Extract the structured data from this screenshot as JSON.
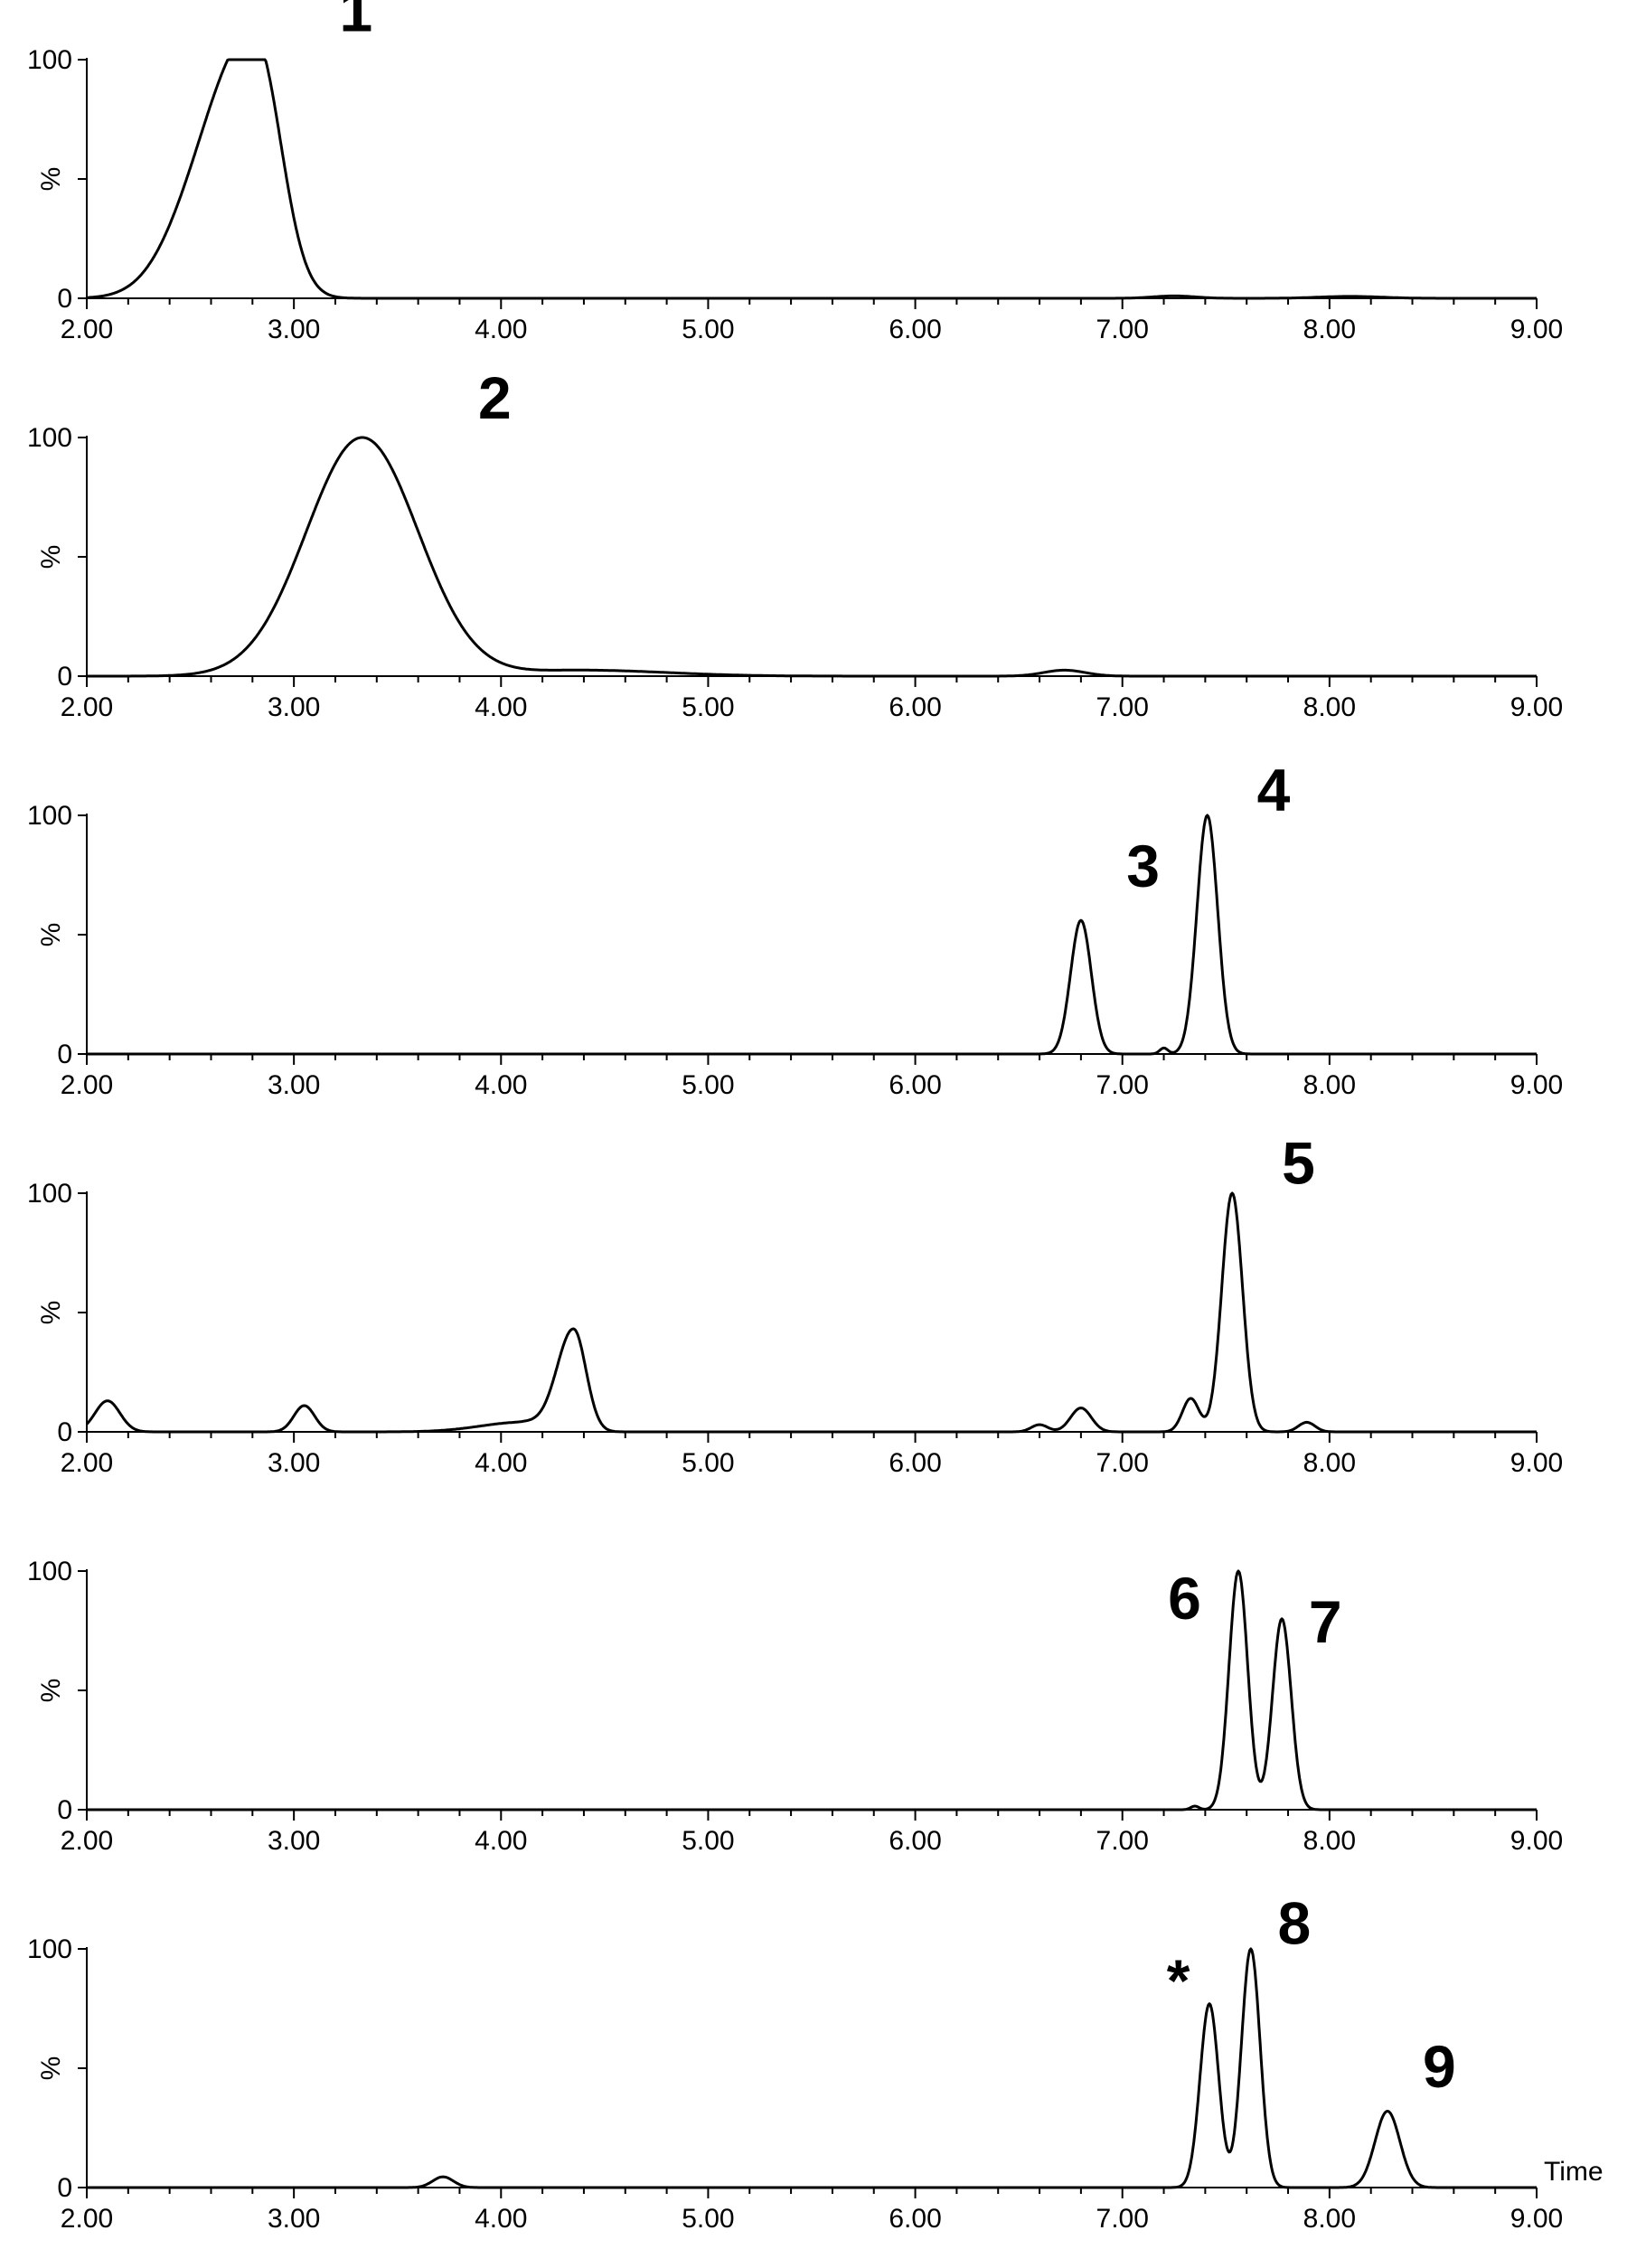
{
  "chart_data": [
    {
      "type": "line",
      "ylabel": "%",
      "xlim": [
        2.0,
        9.0
      ],
      "ylim": [
        0,
        100
      ],
      "x_ticks": [
        "2.00",
        "3.00",
        "4.00",
        "5.00",
        "6.00",
        "7.00",
        "8.00",
        "9.00"
      ],
      "y_ticks": [
        "0",
        "100"
      ],
      "peaks": [
        {
          "center": 2.82,
          "height": 100,
          "sigma_left": 0.2,
          "sigma_right": 0.12
        },
        {
          "center": 2.55,
          "height": 28,
          "sigma_left": 0.18,
          "sigma_right": 0.18
        },
        {
          "center": 7.25,
          "height": 1.0,
          "sigma_left": 0.1,
          "sigma_right": 0.1
        },
        {
          "center": 8.1,
          "height": 0.8,
          "sigma_left": 0.15,
          "sigma_right": 0.15
        }
      ],
      "annotations": [
        {
          "label": "1",
          "x": 3.3,
          "y": 112
        }
      ]
    },
    {
      "type": "line",
      "ylabel": "%",
      "xlim": [
        2.0,
        9.0
      ],
      "ylim": [
        0,
        100
      ],
      "x_ticks": [
        "2.00",
        "3.00",
        "4.00",
        "5.00",
        "6.00",
        "7.00",
        "8.00",
        "9.00"
      ],
      "y_ticks": [
        "0",
        "100"
      ],
      "peaks": [
        {
          "center": 3.33,
          "height": 100,
          "sigma_left": 0.27,
          "sigma_right": 0.27
        },
        {
          "center": 4.4,
          "height": 2.5,
          "sigma_left": 0.3,
          "sigma_right": 0.4
        },
        {
          "center": 6.72,
          "height": 2.5,
          "sigma_left": 0.1,
          "sigma_right": 0.1
        }
      ],
      "annotations": [
        {
          "label": "2",
          "x": 3.97,
          "y": 108
        }
      ]
    },
    {
      "type": "line",
      "ylabel": "%",
      "xlim": [
        2.0,
        9.0
      ],
      "ylim": [
        0,
        100
      ],
      "x_ticks": [
        "2.00",
        "3.00",
        "4.00",
        "5.00",
        "6.00",
        "7.00",
        "8.00",
        "9.00"
      ],
      "y_ticks": [
        "0",
        "100"
      ],
      "peaks": [
        {
          "center": 6.8,
          "height": 56,
          "sigma_left": 0.05,
          "sigma_right": 0.05
        },
        {
          "center": 7.2,
          "height": 2.5,
          "sigma_left": 0.02,
          "sigma_right": 0.02
        },
        {
          "center": 7.41,
          "height": 100,
          "sigma_left": 0.05,
          "sigma_right": 0.05
        }
      ],
      "annotations": [
        {
          "label": "3",
          "x": 7.1,
          "y": 70
        },
        {
          "label": "4",
          "x": 7.73,
          "y": 102
        }
      ]
    },
    {
      "type": "line",
      "ylabel": "%",
      "xlim": [
        2.0,
        9.0
      ],
      "ylim": [
        0,
        100
      ],
      "x_ticks": [
        "2.00",
        "3.00",
        "4.00",
        "5.00",
        "6.00",
        "7.00",
        "8.00",
        "9.00"
      ],
      "y_ticks": [
        "0",
        "100"
      ],
      "peaks": [
        {
          "center": 2.1,
          "height": 13,
          "sigma_left": 0.06,
          "sigma_right": 0.06
        },
        {
          "center": 3.05,
          "height": 11,
          "sigma_left": 0.05,
          "sigma_right": 0.05
        },
        {
          "center": 4.35,
          "height": 43,
          "sigma_left": 0.08,
          "sigma_right": 0.06
        },
        {
          "center": 4.1,
          "height": 4,
          "sigma_left": 0.2,
          "sigma_right": 0.1
        },
        {
          "center": 6.6,
          "height": 3,
          "sigma_left": 0.04,
          "sigma_right": 0.04
        },
        {
          "center": 6.8,
          "height": 10,
          "sigma_left": 0.05,
          "sigma_right": 0.05
        },
        {
          "center": 7.33,
          "height": 14,
          "sigma_left": 0.04,
          "sigma_right": 0.04
        },
        {
          "center": 7.53,
          "height": 100,
          "sigma_left": 0.05,
          "sigma_right": 0.05
        },
        {
          "center": 7.89,
          "height": 4,
          "sigma_left": 0.04,
          "sigma_right": 0.04
        }
      ],
      "annotations": [
        {
          "label": "5",
          "x": 7.85,
          "y": 104
        }
      ]
    },
    {
      "type": "line",
      "ylabel": "%",
      "xlim": [
        2.0,
        9.0
      ],
      "ylim": [
        0,
        100
      ],
      "x_ticks": [
        "2.00",
        "3.00",
        "4.00",
        "5.00",
        "6.00",
        "7.00",
        "8.00",
        "9.00"
      ],
      "y_ticks": [
        "0",
        "100"
      ],
      "peaks": [
        {
          "center": 7.35,
          "height": 1.5,
          "sigma_left": 0.02,
          "sigma_right": 0.02
        },
        {
          "center": 7.56,
          "height": 100,
          "sigma_left": 0.045,
          "sigma_right": 0.045
        },
        {
          "center": 7.77,
          "height": 80,
          "sigma_left": 0.045,
          "sigma_right": 0.045
        }
      ],
      "annotations": [
        {
          "label": "6",
          "x": 7.3,
          "y": 80
        },
        {
          "label": "7",
          "x": 7.98,
          "y": 70
        }
      ]
    },
    {
      "type": "line",
      "ylabel": "%",
      "xlim": [
        2.0,
        9.0
      ],
      "ylim": [
        0,
        100
      ],
      "x_ticks": [
        "2.00",
        "3.00",
        "4.00",
        "5.00",
        "6.00",
        "7.00",
        "8.00",
        "9.00"
      ],
      "y_ticks": [
        "0",
        "100"
      ],
      "xlabel": "Time",
      "peaks": [
        {
          "center": 3.72,
          "height": 4.5,
          "sigma_left": 0.05,
          "sigma_right": 0.05
        },
        {
          "center": 7.42,
          "height": 77,
          "sigma_left": 0.045,
          "sigma_right": 0.045
        },
        {
          "center": 7.62,
          "height": 100,
          "sigma_left": 0.045,
          "sigma_right": 0.045
        },
        {
          "center": 8.28,
          "height": 32,
          "sigma_left": 0.06,
          "sigma_right": 0.06
        }
      ],
      "annotations": [
        {
          "label": "*",
          "x": 7.27,
          "y": 78
        },
        {
          "label": "8",
          "x": 7.83,
          "y": 102
        },
        {
          "label": "9",
          "x": 8.53,
          "y": 42
        }
      ]
    }
  ]
}
